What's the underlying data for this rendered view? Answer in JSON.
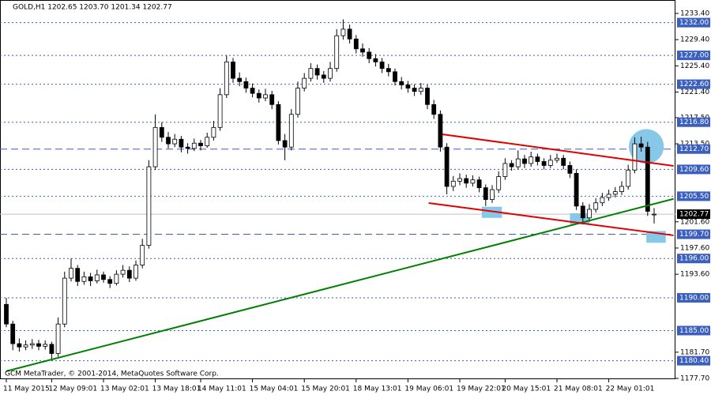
{
  "chart_data": {
    "type": "candlestick",
    "title": "GOLD,H1  1202.65 1203.70 1201.34 1202.77",
    "footer": "GCM MetaTrader, © 2001-2014, MetaQuotes Software Corp.",
    "bull_color": "#ffffff",
    "bear_color": "#000000",
    "categories": [
      "11 May 2015",
      null,
      null,
      null,
      null,
      null,
      null,
      "12 May 09:01",
      null,
      null,
      null,
      null,
      null,
      null,
      null,
      "13 May 02:01",
      null,
      null,
      null,
      null,
      null,
      null,
      null,
      "13 May 18:01",
      null,
      null,
      null,
      null,
      null,
      null,
      "14 May 11:01",
      null,
      null,
      null,
      null,
      null,
      null,
      null,
      "15 May 04:01",
      null,
      null,
      null,
      null,
      null,
      null,
      null,
      "15 May 20:01",
      null,
      null,
      null,
      null,
      null,
      null,
      null,
      "18 May 13:01",
      null,
      null,
      null,
      null,
      null,
      null,
      null,
      "19 May 06:01",
      null,
      null,
      null,
      null,
      null,
      null,
      null,
      "19 May 22:01",
      null,
      null,
      null,
      null,
      null,
      null,
      "20 May 15:01",
      null,
      null,
      null,
      null,
      null,
      null,
      null,
      "21 May 08:01",
      null,
      null,
      null,
      null,
      null,
      null,
      null,
      "22 May 01:01",
      null,
      null,
      null,
      null,
      null,
      null,
      null
    ],
    "ohlc": [
      [
        1189,
        1190,
        1185.5,
        1186
      ],
      [
        1186,
        1186.5,
        1182,
        1183
      ],
      [
        1183,
        1183.8,
        1181.8,
        1182.5
      ],
      [
        1182.5,
        1183.5,
        1182,
        1182.8
      ],
      [
        1182.8,
        1183.7,
        1182.2,
        1183
      ],
      [
        1183,
        1183.6,
        1182,
        1182.6
      ],
      [
        1182.6,
        1183.5,
        1182.1,
        1182.9
      ],
      [
        1182.9,
        1183.3,
        1180.4,
        1181.5
      ],
      [
        1181.5,
        1187,
        1181,
        1186
      ],
      [
        1186,
        1194,
        1185.5,
        1193
      ],
      [
        1193,
        1196,
        1192.5,
        1194.5
      ],
      [
        1194.5,
        1195,
        1191.8,
        1192.5
      ],
      [
        1192.5,
        1194,
        1192,
        1193.2
      ],
      [
        1193.2,
        1193.8,
        1191.8,
        1192.6
      ],
      [
        1192.6,
        1194.3,
        1192.2,
        1193.5
      ],
      [
        1193.5,
        1194,
        1192.3,
        1192.8
      ],
      [
        1192.8,
        1193.3,
        1191.5,
        1192.2
      ],
      [
        1192.2,
        1194.2,
        1191.9,
        1193.6
      ],
      [
        1193.6,
        1195,
        1193.1,
        1194.2
      ],
      [
        1194.2,
        1194.8,
        1192.4,
        1193
      ],
      [
        1193,
        1195.7,
        1192.6,
        1195
      ],
      [
        1195,
        1199,
        1194.5,
        1198
      ],
      [
        1198,
        1211,
        1197.5,
        1210
      ],
      [
        1210,
        1218,
        1209.5,
        1216
      ],
      [
        1216,
        1216.8,
        1213.8,
        1214.5
      ],
      [
        1214.5,
        1215.3,
        1212.8,
        1213.5
      ],
      [
        1213.5,
        1215,
        1213,
        1214.2
      ],
      [
        1214.2,
        1214.7,
        1212.2,
        1213
      ],
      [
        1213,
        1213.6,
        1212,
        1212.8
      ],
      [
        1212.8,
        1214.3,
        1212.4,
        1213.6
      ],
      [
        1213.6,
        1214.1,
        1212.5,
        1213.2
      ],
      [
        1213.2,
        1215.2,
        1212.9,
        1214.5
      ],
      [
        1214.5,
        1217,
        1214,
        1216
      ],
      [
        1216,
        1222,
        1215.5,
        1221
      ],
      [
        1221,
        1227,
        1220.5,
        1226
      ],
      [
        1226,
        1226.6,
        1222.8,
        1223.5
      ],
      [
        1223.5,
        1224.4,
        1222.3,
        1223
      ],
      [
        1223,
        1223.6,
        1221.3,
        1222
      ],
      [
        1222,
        1222.7,
        1220.6,
        1221.2
      ],
      [
        1221.2,
        1221.8,
        1219.8,
        1220.5
      ],
      [
        1220.5,
        1221.9,
        1220,
        1221
      ],
      [
        1221,
        1221.6,
        1218.8,
        1219.5
      ],
      [
        1219.5,
        1220,
        1213.4,
        1214
      ],
      [
        1214,
        1215,
        1211,
        1213
      ],
      [
        1213,
        1218.8,
        1212.5,
        1218
      ],
      [
        1218,
        1223,
        1217.5,
        1222
      ],
      [
        1222,
        1224.3,
        1221.5,
        1223.5
      ],
      [
        1223.5,
        1225.8,
        1223,
        1225
      ],
      [
        1225,
        1225.6,
        1223.3,
        1224
      ],
      [
        1224,
        1224.6,
        1222.8,
        1223.5
      ],
      [
        1223.5,
        1226,
        1223,
        1225
      ],
      [
        1225,
        1231,
        1224.5,
        1230
      ],
      [
        1230,
        1232.5,
        1229.4,
        1231
      ],
      [
        1231,
        1231.7,
        1228.8,
        1229.5
      ],
      [
        1229.5,
        1230.1,
        1227.3,
        1228
      ],
      [
        1228,
        1228.8,
        1226.8,
        1227.5
      ],
      [
        1227.5,
        1228.1,
        1225.8,
        1226.5
      ],
      [
        1226.5,
        1227.2,
        1225.3,
        1226
      ],
      [
        1226,
        1226.6,
        1224.3,
        1225
      ],
      [
        1225,
        1225.7,
        1223.8,
        1224.5
      ],
      [
        1224.5,
        1225,
        1222.4,
        1223
      ],
      [
        1223,
        1223.7,
        1221.8,
        1222.5
      ],
      [
        1222.5,
        1223.1,
        1221.3,
        1222
      ],
      [
        1222,
        1222.6,
        1220.8,
        1221.5
      ],
      [
        1221.5,
        1222.8,
        1221,
        1222
      ],
      [
        1222,
        1222.5,
        1218.8,
        1219.5
      ],
      [
        1219.5,
        1220.2,
        1217.3,
        1218
      ],
      [
        1218,
        1218.6,
        1212.3,
        1213
      ],
      [
        1213,
        1213.6,
        1205.8,
        1207
      ],
      [
        1207,
        1208.6,
        1206.3,
        1207.8
      ],
      [
        1207.8,
        1209,
        1207.2,
        1208.2
      ],
      [
        1208.2,
        1208.8,
        1206.8,
        1207.5
      ],
      [
        1207.5,
        1208.7,
        1207,
        1208
      ],
      [
        1208,
        1208.5,
        1206.1,
        1206.8
      ],
      [
        1206.8,
        1207.3,
        1204,
        1205
      ],
      [
        1205,
        1207.2,
        1204.5,
        1206.5
      ],
      [
        1206.5,
        1209.3,
        1206,
        1208.5
      ],
      [
        1208.5,
        1211.3,
        1208,
        1210.5
      ],
      [
        1210.5,
        1211,
        1209.4,
        1210
      ],
      [
        1210,
        1212.5,
        1209.6,
        1211.2
      ],
      [
        1211.2,
        1211.8,
        1209.8,
        1210.5
      ],
      [
        1210.5,
        1212.3,
        1210,
        1211.5
      ],
      [
        1211.5,
        1212,
        1210.2,
        1210.8
      ],
      [
        1210.8,
        1211.3,
        1209.6,
        1210.2
      ],
      [
        1210.2,
        1211.8,
        1209.8,
        1211
      ],
      [
        1211,
        1212,
        1210.6,
        1211.3
      ],
      [
        1211.3,
        1211.8,
        1209.6,
        1210.2
      ],
      [
        1210.2,
        1210.8,
        1208.3,
        1209
      ],
      [
        1209,
        1209.6,
        1203.4,
        1204
      ],
      [
        1204,
        1204.6,
        1201.2,
        1202.2
      ],
      [
        1202.2,
        1204.3,
        1201.6,
        1203.5
      ],
      [
        1203.5,
        1205.2,
        1203,
        1204.5
      ],
      [
        1204.5,
        1206,
        1204,
        1205.3
      ],
      [
        1205.3,
        1206.5,
        1204.8,
        1205.8
      ],
      [
        1205.8,
        1206.9,
        1205.3,
        1206.2
      ],
      [
        1206.2,
        1207.8,
        1205.7,
        1207
      ],
      [
        1207,
        1210.3,
        1206.5,
        1209.5
      ],
      [
        1209.5,
        1214.5,
        1209,
        1213.5
      ],
      [
        1213.5,
        1214.6,
        1212.3,
        1213
      ],
      [
        1213,
        1213.8,
        1202.5,
        1203.2
      ],
      [
        1202.65,
        1203.7,
        1201.34,
        1202.77
      ]
    ],
    "ylim": [
      1177.58,
      1235.45
    ],
    "yticks": [
      {
        "value": 1233.4,
        "label": "1233.40"
      },
      {
        "value": 1229.4,
        "label": "1229.40"
      },
      {
        "value": 1225.4,
        "label": "1225.40"
      },
      {
        "value": 1221.4,
        "label": "1221.40"
      },
      {
        "value": 1217.5,
        "label": "1217.50"
      },
      {
        "value": 1213.5,
        "label": "1213.50"
      },
      {
        "value": 1201.6,
        "label": "1201.60"
      },
      {
        "value": 1197.6,
        "label": "1197.60"
      },
      {
        "value": 1193.6,
        "label": "1193.60"
      },
      {
        "value": 1181.7,
        "label": "1181.70"
      },
      {
        "value": 1177.7,
        "label": "1177.70"
      }
    ],
    "levels": [
      {
        "value": 1232,
        "label": "1232.00",
        "style": "dotted"
      },
      {
        "value": 1227,
        "label": "1227.00",
        "style": "dotted"
      },
      {
        "value": 1222.6,
        "label": "1222.60",
        "style": "dotted"
      },
      {
        "value": 1216.8,
        "label": "1216.80",
        "style": "dotted"
      },
      {
        "value": 1212.7,
        "label": "1212.70",
        "style": "dashed"
      },
      {
        "value": 1209.6,
        "label": "1209.60",
        "style": "dotted"
      },
      {
        "value": 1205.5,
        "label": "1205.50",
        "style": "dotted"
      },
      {
        "value": 1199.7,
        "label": "1199.70",
        "style": "dashed"
      },
      {
        "value": 1196,
        "label": "1196.00",
        "style": "dotted"
      },
      {
        "value": 1190,
        "label": "1190.00",
        "style": "dotted"
      },
      {
        "value": 1185,
        "label": "1185.00",
        "style": "dotted"
      },
      {
        "value": 1180.4,
        "label": "1180.40",
        "style": "dotted"
      }
    ],
    "level_color": "#3a5fbf",
    "last": {
      "value": 1202.77,
      "label": "1202.77"
    },
    "lines": [
      {
        "x": [
          0,
          103
        ],
        "y": [
          1178.8,
          1205.1
        ],
        "color": "#008000"
      },
      {
        "x": [
          67.3,
          103
        ],
        "y": [
          1214.95,
          1210.13
        ],
        "color": "#e00000"
      },
      {
        "x": [
          65.2,
          103
        ],
        "y": [
          1204.47,
          1199.53
        ],
        "color": "#e00000"
      }
    ],
    "shapes_color": "#87c8e8",
    "shapes": [
      {
        "shape": "rect",
        "x": [
          73.4,
          76.5
        ],
        "y": [
          1202.2,
          1203.9
        ]
      },
      {
        "shape": "rect",
        "x": [
          87,
          90
        ],
        "y": [
          1201.2,
          1202.9
        ]
      },
      {
        "shape": "rect",
        "x": [
          98.8,
          101.8
        ],
        "y": [
          1198.4,
          1200.2
        ]
      },
      {
        "shape": "ellipse",
        "x": [
          96.1,
          101.5
        ],
        "y": [
          1210.45,
          1215.75
        ]
      }
    ]
  }
}
